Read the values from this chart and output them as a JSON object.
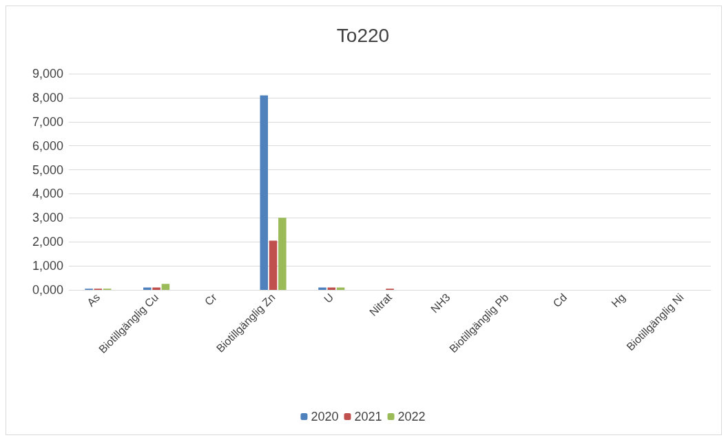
{
  "chart_data": {
    "type": "bar",
    "title": "To220",
    "categories": [
      "As",
      "Biotillgänglig Cu",
      "Cr",
      "Biotillgänglig Zn",
      "U",
      "Nitrat",
      "NH3",
      "Biotillgänglig Pb",
      "Cd",
      "Hg",
      "Biotillgänglig Ni"
    ],
    "series": [
      {
        "name": "2020",
        "color": "#4f81bd",
        "values": [
          50,
          100,
          0,
          8100,
          100,
          0,
          0,
          0,
          0,
          0,
          0
        ]
      },
      {
        "name": "2021",
        "color": "#c0504d",
        "values": [
          50,
          100,
          0,
          2050,
          100,
          50,
          0,
          0,
          0,
          0,
          0
        ]
      },
      {
        "name": "2022",
        "color": "#9bbb59",
        "values": [
          50,
          250,
          0,
          3000,
          100,
          0,
          0,
          0,
          0,
          0,
          0
        ]
      }
    ],
    "ylim": [
      0,
      9000
    ],
    "yticks": [
      {
        "value": 0,
        "label": "0,000"
      },
      {
        "value": 1000,
        "label": "1,000"
      },
      {
        "value": 2000,
        "label": "2,000"
      },
      {
        "value": 3000,
        "label": "3,000"
      },
      {
        "value": 4000,
        "label": "4,000"
      },
      {
        "value": 5000,
        "label": "5,000"
      },
      {
        "value": 6000,
        "label": "6,000"
      },
      {
        "value": 7000,
        "label": "7,000"
      },
      {
        "value": 8000,
        "label": "8,000"
      },
      {
        "value": 9000,
        "label": "9,000"
      }
    ],
    "grid": "y",
    "legend": "bottom"
  }
}
